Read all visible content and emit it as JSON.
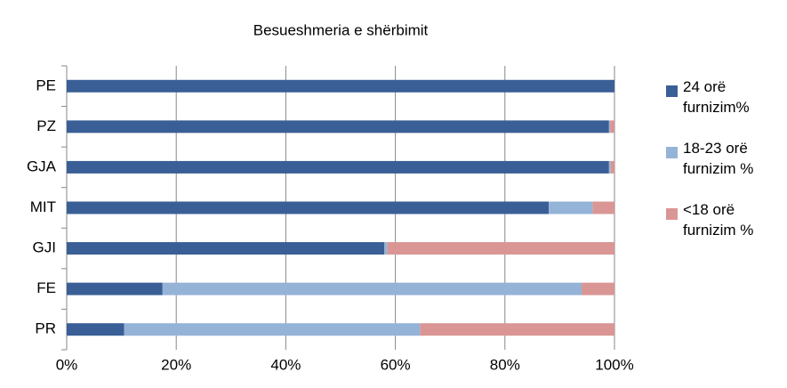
{
  "chart_data": {
    "type": "stacked_barh",
    "title": "Besueshmeria e shërbimit",
    "categories": [
      "PE",
      "PZ",
      "GJA",
      "MIT",
      "GJI",
      "FE",
      "PR"
    ],
    "series": [
      {
        "name": "24 orë furnizim%",
        "color": "#3a5f96",
        "values": [
          100,
          99,
          99,
          88,
          58,
          17.5,
          10.5
        ]
      },
      {
        "name": "18-23 orë furnizim %",
        "color": "#95b3d7",
        "values": [
          0,
          0.2,
          0.3,
          8,
          0.5,
          76.5,
          54
        ]
      },
      {
        "name": "<18 orë furnizim %",
        "color": "#d99694",
        "values": [
          0,
          0.8,
          0.7,
          4,
          41.5,
          6,
          35.5
        ]
      }
    ],
    "xlim": [
      0,
      100
    ],
    "xticks": [
      {
        "value": 0,
        "label": "0%"
      },
      {
        "value": 20,
        "label": "20%"
      },
      {
        "value": 40,
        "label": "40%"
      },
      {
        "value": 60,
        "label": "60%"
      },
      {
        "value": 80,
        "label": "80%"
      },
      {
        "value": 100,
        "label": "100%"
      }
    ],
    "grid": true,
    "legend": "right"
  }
}
